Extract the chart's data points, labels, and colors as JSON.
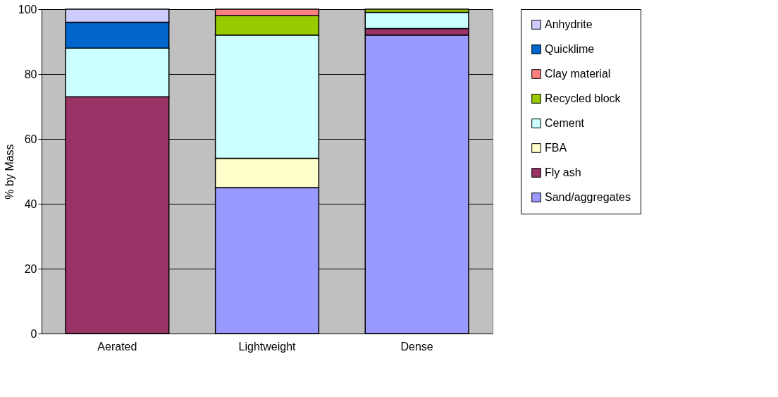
{
  "chart_data": {
    "type": "bar",
    "stacked": true,
    "ylabel": "% by Mass",
    "categories": [
      "Aerated",
      "Lightweight",
      "Dense"
    ],
    "series": [
      {
        "name": "Sand/aggregates",
        "color": "#9999ff",
        "values": [
          null,
          45,
          92
        ]
      },
      {
        "name": "Fly ash",
        "color": "#993366",
        "values": [
          73,
          null,
          2
        ]
      },
      {
        "name": "FBA",
        "color": "#ffffcc",
        "values": [
          null,
          9,
          null
        ]
      },
      {
        "name": "Cement",
        "color": "#ccffff",
        "values": [
          15,
          38,
          5
        ]
      },
      {
        "name": "Recycled block",
        "color": "#99cc00",
        "values": [
          null,
          6,
          1
        ]
      },
      {
        "name": "Clay material",
        "color": "#ff8080",
        "values": [
          null,
          2,
          null
        ]
      },
      {
        "name": "Quicklime",
        "color": "#0066cc",
        "values": [
          8,
          null,
          null
        ]
      },
      {
        "name": "Anhydrite",
        "color": "#ccccff",
        "values": [
          4,
          null,
          null
        ]
      }
    ],
    "ylim": [
      0,
      100
    ],
    "yticks": [
      0,
      20,
      40,
      60,
      80,
      100
    ],
    "grid": "y",
    "legend": "right"
  }
}
